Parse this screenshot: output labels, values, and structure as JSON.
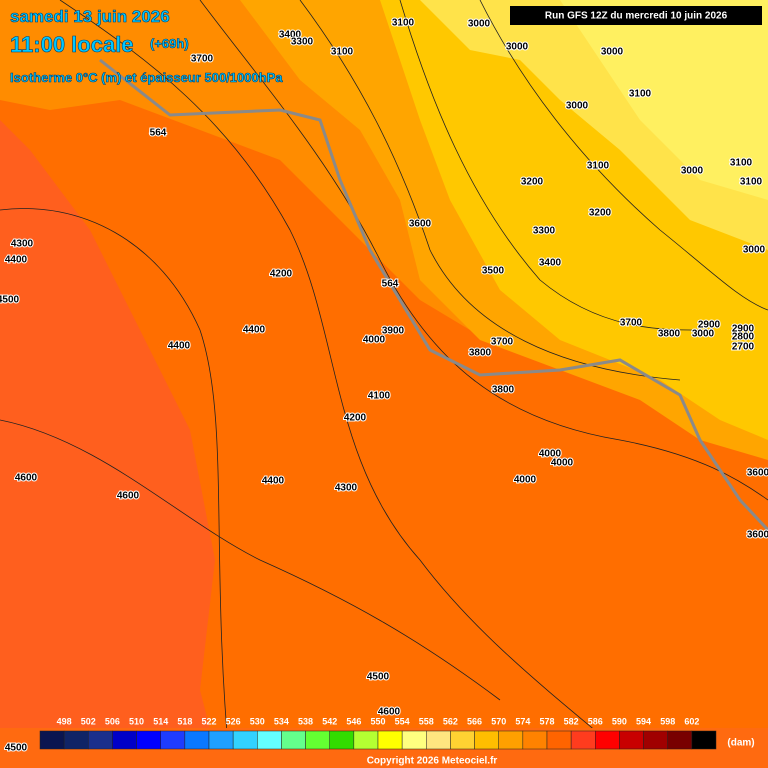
{
  "header": {
    "date": "samedi 13 juin 2026",
    "time": "11:00 locale",
    "lead": "(+69h)",
    "subtitle": "Isotherme 0°C (m) et épaisseur 500/1000hPa",
    "run": "Run GFS 12Z du mercredi 10 juin 2026"
  },
  "map": {
    "contour_labels": [
      3100,
      3000,
      3400,
      3300,
      3100,
      3000,
      3000,
      3700,
      3100,
      3000,
      564,
      3100,
      3000,
      3100,
      3100,
      3200,
      3200,
      3600,
      3300,
      4300,
      4400,
      3500,
      3400,
      3000,
      4200,
      564,
      4500,
      3700,
      3800,
      2900,
      2900,
      2800,
      3000,
      2700,
      4400,
      3900,
      4000,
      3700,
      4400,
      3800,
      4100,
      3800,
      4200,
      4000,
      4000,
      3600,
      4600,
      4600,
      4400,
      4300,
      4000,
      3600,
      4500,
      4600,
      4500
    ]
  },
  "legend": {
    "values": [
      498,
      502,
      506,
      510,
      514,
      518,
      522,
      526,
      530,
      534,
      538,
      542,
      546,
      550,
      554,
      558,
      562,
      566,
      570,
      574,
      578,
      582,
      586,
      590,
      594,
      598,
      602
    ],
    "colors": [
      "#0a1550",
      "#102466",
      "#1a2f8c",
      "#0000c8",
      "#0000ff",
      "#1e3cff",
      "#0a78ff",
      "#1ea0ff",
      "#32d2ff",
      "#64ffff",
      "#64ff8c",
      "#64ff32",
      "#32dc00",
      "#b4ff32",
      "#ffff00",
      "#ffff80",
      "#ffe680",
      "#ffd232",
      "#ffbe00",
      "#ffa000",
      "#ff8200",
      "#ff6400",
      "#ff3c1e",
      "#ff0000",
      "#c80000",
      "#a00000",
      "#780000",
      "#000000"
    ],
    "unit": "(dam)"
  },
  "footer": {
    "copyright": "Copyright 2026 Meteociel.fr"
  }
}
